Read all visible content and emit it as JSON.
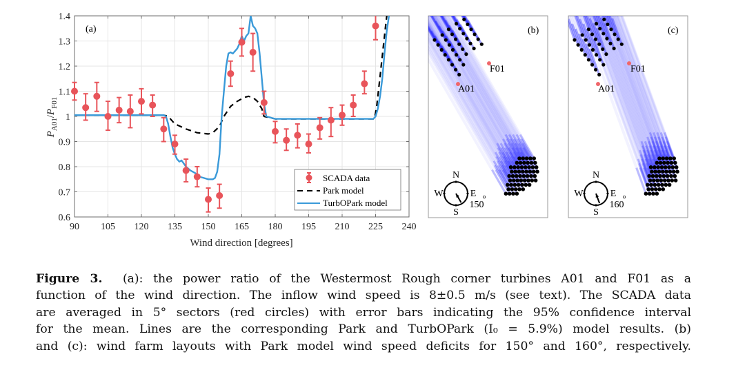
{
  "figure": {
    "panel_a_label": "(a)",
    "panel_b_label": "(b)",
    "panel_c_label": "(c)",
    "colors": {
      "scada": "#e8545a",
      "park": "#000000",
      "turbopark": "#3a9ad9",
      "grid": "#e5e5e5",
      "axis": "#6e6e6e",
      "wake": "#1a1aff",
      "turbine": "#000000",
      "corner_turbine": "#f0666a"
    }
  },
  "chart_data": {
    "type": "line",
    "title": "",
    "xlabel": "Wind direction [degrees]",
    "ylabel": "P_A01 / P_F01",
    "ylabel_main": "P",
    "ylabel_sub1": "A01",
    "ylabel_sep": "/",
    "ylabel_sub2": "F01",
    "xlim": [
      90,
      240
    ],
    "ylim": [
      0.6,
      1.4
    ],
    "xticks": [
      90,
      105,
      120,
      135,
      150,
      165,
      180,
      195,
      210,
      225,
      240
    ],
    "yticks": [
      0.6,
      0.7,
      0.8,
      0.9,
      1.0,
      1.1,
      1.2,
      1.3,
      1.4
    ],
    "ytick_labels": [
      "0.6",
      "0.7",
      "0.8",
      "0.9",
      "1",
      "1.1",
      "1.2",
      "1.3",
      "1.4"
    ],
    "grid": true,
    "legend_position": "bottom-right",
    "legend": [
      "SCADA data",
      "Park model",
      "TurbOPark model"
    ],
    "series": [
      {
        "name": "SCADA data",
        "kind": "errorbar",
        "x": [
          90,
          95,
          100,
          105,
          110,
          115,
          120,
          125,
          130,
          135,
          140,
          145,
          150,
          155,
          160,
          165,
          170,
          175,
          180,
          185,
          190,
          195,
          200,
          205,
          210,
          215,
          220,
          225
        ],
        "y": [
          1.1,
          1.035,
          1.08,
          1.0,
          1.025,
          1.02,
          1.06,
          1.045,
          0.95,
          0.89,
          0.785,
          0.76,
          0.67,
          0.685,
          1.17,
          1.295,
          1.255,
          1.055,
          0.94,
          0.905,
          0.925,
          0.89,
          0.955,
          0.985,
          1.005,
          1.045,
          1.13,
          1.36
        ],
        "lower": [
          1.065,
          0.985,
          1.02,
          0.945,
          0.975,
          0.955,
          1.01,
          1.0,
          0.9,
          0.85,
          0.74,
          0.72,
          0.62,
          0.635,
          1.12,
          1.24,
          1.18,
          1.01,
          0.895,
          0.865,
          0.875,
          0.855,
          0.91,
          0.92,
          0.965,
          1.0,
          1.09,
          1.305
        ],
        "upper": [
          1.135,
          1.09,
          1.135,
          1.06,
          1.075,
          1.085,
          1.11,
          1.085,
          0.995,
          0.925,
          0.83,
          0.8,
          0.715,
          0.73,
          1.22,
          1.35,
          1.33,
          1.1,
          0.98,
          0.95,
          0.97,
          0.93,
          0.995,
          1.035,
          1.045,
          1.085,
          1.18,
          1.4
        ]
      },
      {
        "name": "Park model",
        "kind": "dashed-line",
        "x": [
          90,
          120,
          130,
          132,
          135,
          140,
          145,
          150,
          152,
          155,
          157,
          160,
          163,
          166,
          168,
          170,
          172,
          174,
          175,
          180,
          190,
          200,
          210,
          220,
          224.5,
          225.5,
          226.5,
          227.5,
          228.5,
          229.5,
          230
        ],
        "y": [
          1.005,
          1.005,
          1.005,
          1.0,
          0.97,
          0.95,
          0.935,
          0.93,
          0.935,
          0.96,
          1.0,
          1.04,
          1.06,
          1.075,
          1.08,
          1.075,
          1.06,
          1.03,
          1.0,
          0.99,
          0.99,
          0.99,
          0.99,
          0.99,
          0.99,
          1.04,
          1.12,
          1.2,
          1.28,
          1.36,
          1.4
        ]
      },
      {
        "name": "TurbOPark model",
        "kind": "line",
        "x": [
          90,
          110,
          125,
          130,
          131,
          132,
          133,
          134,
          135,
          136,
          137,
          138,
          140,
          142,
          144,
          146,
          148,
          150,
          152,
          153,
          154,
          155,
          156,
          157,
          158,
          159,
          160,
          161,
          162,
          163,
          164,
          165,
          166,
          167,
          168,
          169,
          170,
          171,
          172,
          173,
          174,
          175,
          176,
          180,
          190,
          200,
          210,
          220,
          224,
          225,
          226,
          227,
          228,
          229,
          230,
          231
        ],
        "y": [
          1.005,
          1.005,
          1.005,
          1.005,
          1.0,
          0.97,
          0.92,
          0.875,
          0.85,
          0.83,
          0.82,
          0.825,
          0.8,
          0.785,
          0.775,
          0.76,
          0.755,
          0.75,
          0.75,
          0.755,
          0.78,
          0.85,
          1.0,
          1.1,
          1.2,
          1.25,
          1.255,
          1.25,
          1.26,
          1.27,
          1.29,
          1.32,
          1.3,
          1.32,
          1.33,
          1.4,
          1.36,
          1.35,
          1.33,
          1.25,
          1.15,
          1.05,
          1.0,
          0.99,
          0.99,
          0.99,
          0.99,
          0.99,
          0.99,
          1.0,
          1.03,
          1.08,
          1.15,
          1.25,
          1.34,
          1.4
        ]
      }
    ]
  },
  "layout_panels": [
    {
      "label": "(b)",
      "direction_deg": 150,
      "direction_label": "150",
      "degree_sign": "°",
      "corner_a": "A01",
      "corner_f": "F01",
      "compass": {
        "n": "N",
        "s": "S",
        "e": "E",
        "w": "W"
      }
    },
    {
      "label": "(c)",
      "direction_deg": 160,
      "direction_label": "160",
      "degree_sign": "°",
      "corner_a": "A01",
      "corner_f": "F01",
      "compass": {
        "n": "N",
        "s": "S",
        "e": "E",
        "w": "W"
      }
    }
  ],
  "caption": {
    "label": "Figure 3.",
    "lines": [
      "(a): the power ratio of the Westermost Rough corner turbines A01 and F01 as a",
      "function of the wind direction. The inflow wind speed is 8±0.5 m/s (see text). The SCADA data",
      "are averaged in 5° sectors (red circles) with error bars indicating the 95% confidence interval",
      "for the mean. Lines are the corresponding Park and TurbOPark (I₀ = 5.9%) model results. (b)",
      "and (c): wind farm layouts with Park model wind speed deficits for 150° and 160°, respectively."
    ]
  }
}
